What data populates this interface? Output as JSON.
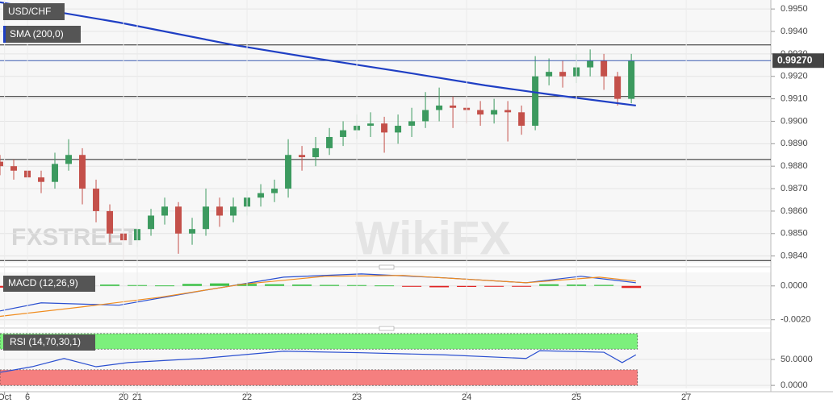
{
  "chart_data": [
    {
      "type": "candlestick",
      "title": "USD/CHF",
      "x": [
        0,
        3,
        6,
        9,
        12,
        15,
        18,
        21,
        24,
        27,
        30,
        33,
        36,
        39,
        42,
        45,
        48,
        51,
        54,
        57,
        60,
        63,
        66,
        69,
        72,
        75,
        78,
        81,
        84,
        87,
        90,
        93,
        96,
        99,
        102,
        105,
        108,
        111,
        114,
        117,
        120,
        123,
        126,
        129,
        132,
        135,
        138
      ],
      "open": [
        0.9882,
        0.988,
        0.9878,
        0.9875,
        0.9873,
        0.9881,
        0.9885,
        0.987,
        0.986,
        0.985,
        0.9847,
        0.9852,
        0.9858,
        0.9862,
        0.985,
        0.9852,
        0.9862,
        0.9858,
        0.9862,
        0.9866,
        0.9868,
        0.987,
        0.9885,
        0.9884,
        0.9888,
        0.9893,
        0.9896,
        0.9898,
        0.9899,
        0.9895,
        0.9898,
        0.99,
        0.9905,
        0.9907,
        0.9906,
        0.9905,
        0.9903,
        0.9905,
        0.9904,
        0.9898,
        0.992,
        0.9922,
        0.992,
        0.9924,
        0.9927,
        0.992,
        0.991
      ],
      "high": [
        0.9885,
        0.9883,
        0.988,
        0.9878,
        0.9886,
        0.9892,
        0.9888,
        0.9874,
        0.9863,
        0.9853,
        0.9855,
        0.9861,
        0.9866,
        0.9864,
        0.9857,
        0.987,
        0.9866,
        0.9866,
        0.9869,
        0.9872,
        0.9874,
        0.9892,
        0.9889,
        0.9893,
        0.9897,
        0.99,
        0.9903,
        0.9904,
        0.9902,
        0.9903,
        0.9906,
        0.9913,
        0.9915,
        0.9911,
        0.991,
        0.9909,
        0.991,
        0.9909,
        0.9907,
        0.9929,
        0.9928,
        0.9927,
        0.993,
        0.9932,
        0.993,
        0.9922,
        0.993
      ],
      "low": [
        0.9876,
        0.9874,
        0.987,
        0.9868,
        0.987,
        0.9878,
        0.9863,
        0.9855,
        0.9846,
        0.9838,
        0.9844,
        0.9849,
        0.9854,
        0.9841,
        0.9845,
        0.9849,
        0.9853,
        0.9855,
        0.9858,
        0.9862,
        0.9864,
        0.9866,
        0.9878,
        0.988,
        0.9885,
        0.9889,
        0.9892,
        0.9893,
        0.9886,
        0.989,
        0.9893,
        0.9897,
        0.99,
        0.9897,
        0.9899,
        0.9898,
        0.9899,
        0.9891,
        0.9894,
        0.9896,
        0.9916,
        0.9915,
        0.9917,
        0.992,
        0.9914,
        0.9907,
        0.9908
      ],
      "close": [
        0.988,
        0.9878,
        0.9875,
        0.9873,
        0.9881,
        0.9885,
        0.987,
        0.986,
        0.985,
        0.9847,
        0.9852,
        0.9858,
        0.9862,
        0.985,
        0.9852,
        0.9862,
        0.9858,
        0.9862,
        0.9866,
        0.9868,
        0.987,
        0.9885,
        0.9884,
        0.9888,
        0.9893,
        0.9896,
        0.9898,
        0.9899,
        0.9895,
        0.9898,
        0.99,
        0.9905,
        0.9907,
        0.9906,
        0.9905,
        0.9903,
        0.9905,
        0.9904,
        0.9898,
        0.992,
        0.9922,
        0.992,
        0.9924,
        0.9927,
        0.992,
        0.991,
        0.9927
      ],
      "up_color": "#3c9a5f",
      "down_color": "#c4504a",
      "xlim": [
        0,
        168.5
      ],
      "ylim": [
        0.9837,
        0.9954
      ],
      "yticks": [
        {
          "value": 0.995,
          "label": "0.9950"
        },
        {
          "value": 0.994,
          "label": "0.9940"
        },
        {
          "value": 0.993,
          "label": "0.9930"
        },
        {
          "value": 0.992,
          "label": "0.9920"
        },
        {
          "value": 0.991,
          "label": "0.9910"
        },
        {
          "value": 0.99,
          "label": "0.9900"
        },
        {
          "value": 0.989,
          "label": "0.9890"
        },
        {
          "value": 0.988,
          "label": "0.9880"
        },
        {
          "value": 0.987,
          "label": "0.9870"
        },
        {
          "value": 0.986,
          "label": "0.9860"
        },
        {
          "value": 0.985,
          "label": "0.9850"
        },
        {
          "value": 0.984,
          "label": "0.9840"
        }
      ],
      "grid": true,
      "lines": [
        {
          "name": "SMA (200,0)",
          "color": "#1f3fc4",
          "x": [
            0,
            26,
            51,
            69,
            88,
            106,
            120,
            139
          ],
          "values": [
            0.9953,
            0.9944,
            0.9934,
            0.9928,
            0.9922,
            0.9916,
            0.9912,
            0.9907
          ]
        }
      ],
      "hlines": [
        0.9934,
        0.9911,
        0.9883,
        0.9838
      ],
      "hline_color": "#222222",
      "last_price": {
        "value": 0.9927,
        "label": "0.99270"
      },
      "last_price_color": "#3a5bb0"
    },
    {
      "type": "macd",
      "title": "MACD (12,26,9)",
      "xlim": [
        0,
        168.5
      ],
      "ylim": [
        -0.0023,
        0.0008
      ],
      "yticks": [
        {
          "value": 0,
          "label": "0.0000"
        },
        {
          "value": -0.002,
          "label": "-0.0020"
        }
      ],
      "histogram": {
        "x": [
          0,
          6,
          12,
          18,
          24,
          30,
          36,
          42,
          48,
          54,
          60,
          66,
          72,
          78,
          84,
          90,
          96,
          102,
          108,
          114,
          120,
          126,
          132,
          138
        ],
        "values": [
          -0.0001,
          5e-05,
          0.0001,
          0.0001,
          8e-05,
          5e-05,
          3e-05,
          0.00012,
          0.00015,
          0.00012,
          0.0001,
          8e-05,
          6e-05,
          5e-05,
          3e-05,
          -5e-05,
          -8e-05,
          -6e-05,
          -4e-05,
          -3e-05,
          0.0001,
          8e-05,
          6e-05,
          -0.00012
        ],
        "colors": [
          "#3fc24a",
          "#e02424"
        ]
      },
      "series": [
        {
          "color": "#2a4fd0",
          "x": [
            0,
            9,
            26,
            44,
            62,
            79,
            97,
            115,
            127,
            139
          ],
          "values": [
            -0.00148,
            -0.001,
            -0.00114,
            -0.00029,
            0.00052,
            0.00071,
            0.00048,
            0.00019,
            0.00057,
            0.00019
          ]
        },
        {
          "color": "#f08c1e",
          "x": [
            0,
            18,
            35,
            53,
            71,
            88,
            115,
            131,
            139
          ],
          "values": [
            -0.0018,
            -0.00124,
            -0.00067,
            0.0001,
            0.00057,
            0.00062,
            0.00019,
            0.00052,
            0.00029
          ]
        }
      ]
    },
    {
      "type": "rsi",
      "title": "RSI (14,70,30,1)",
      "xlim": [
        0,
        168.5
      ],
      "ylim": [
        -6,
        103
      ],
      "yticks": [
        {
          "value": 50,
          "label": "50.0000"
        },
        {
          "value": 0,
          "label": "0.0000"
        }
      ],
      "xticks": [
        {
          "value": 1,
          "label": "Oct"
        },
        6,
        20,
        21,
        22,
        23,
        24,
        25,
        27
      ],
      "xtick_hours": [
        1,
        6,
        27,
        30,
        54,
        78,
        102,
        126,
        150
      ],
      "bands": {
        "overbought": [
          70,
          100
        ],
        "oversold": [
          0,
          30
        ]
      },
      "band_colors": [
        "#7cf07c",
        "#f57f7f"
      ],
      "series": [
        {
          "color": "#2a4fd0",
          "x": [
            0,
            7,
            14,
            21,
            28,
            44,
            62,
            79,
            97,
            115,
            118,
            132,
            136,
            139
          ],
          "values": [
            25,
            36,
            52,
            36,
            44,
            52,
            66,
            63,
            59,
            52,
            67,
            64,
            44,
            59
          ]
        }
      ]
    }
  ],
  "watermarks": [
    "FXSTREET",
    "WikiFX"
  ]
}
